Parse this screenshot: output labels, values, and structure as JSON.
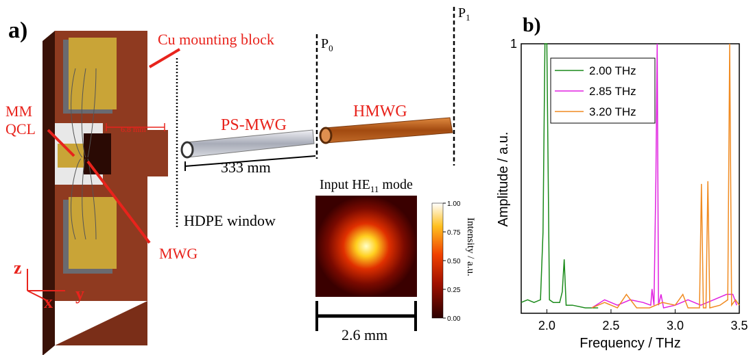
{
  "panel_a": {
    "label": "a)",
    "block_label": "Cu mounting block",
    "qcl_label": [
      "MM",
      "QCL"
    ],
    "gap_label": "6.8 mm",
    "ps_mwg": "PS-MWG",
    "hmwg": "HMWG",
    "length_label": "333 mm",
    "p0": {
      "base": "P",
      "sub": "0"
    },
    "p1": {
      "base": "P",
      "sub": "1"
    },
    "mode_label": {
      "pre": "Input HE",
      "sub": "11",
      "post": " mode"
    },
    "window_label": "HDPE window",
    "mwg_label": "MWG",
    "axes": {
      "z": "z",
      "x": "x",
      "y": "y"
    },
    "scale_label": "2.6 mm",
    "colorbar": {
      "title": "Intensity / a.u.",
      "lim": [
        0,
        1
      ],
      "ticks": [
        {
          "value": 0,
          "label": "0.00"
        },
        {
          "value": 0.25,
          "label": "0.25"
        },
        {
          "value": 0.5,
          "label": "0.50"
        },
        {
          "value": 0.75,
          "label": "0.75"
        },
        {
          "value": 1,
          "label": "1.00"
        }
      ]
    }
  },
  "chart_data": {
    "type": "line",
    "panel_label": "b)",
    "x_label": "Frequency / THz",
    "y_label": "Amplitude / a.u.",
    "xlim": [
      1.8,
      3.5
    ],
    "ylim": [
      0,
      1
    ],
    "xticks": [
      {
        "value": 2,
        "label": "2.0"
      },
      {
        "value": 2.5,
        "label": "2.5"
      },
      {
        "value": 3,
        "label": "3.0"
      },
      {
        "value": 3.5,
        "label": "3.5"
      }
    ],
    "yticks": [
      1
    ],
    "legend": "top-left",
    "series": [
      {
        "name": "2.00 THz",
        "color": "#1a8a1a",
        "x": [
          1.8,
          1.85,
          1.9,
          1.95,
          1.97,
          1.985,
          2.0,
          2.02,
          2.05,
          2.1,
          2.12,
          2.135,
          2.15,
          2.2,
          2.3,
          2.4
        ],
        "values": [
          0.04,
          0.05,
          0.04,
          0.05,
          0.3,
          1,
          1,
          0.05,
          0.04,
          0.04,
          0.08,
          0.2,
          0.03,
          0.03,
          0.02,
          0.02
        ]
      },
      {
        "name": "2.85 THz",
        "color": "#e020e0",
        "x": [
          2.35,
          2.45,
          2.55,
          2.65,
          2.75,
          2.81,
          2.82,
          2.835,
          2.85,
          2.86,
          2.87,
          2.89,
          2.91,
          3.0,
          3.1,
          3.2,
          3.3,
          3.4,
          3.45,
          3.48
        ],
        "values": [
          0.02,
          0.05,
          0.03,
          0.05,
          0.04,
          0.03,
          0.09,
          0.03,
          0.5,
          1,
          0.03,
          0.07,
          0.02,
          0.03,
          0.05,
          0.03,
          0.05,
          0.07,
          0.07,
          0.03
        ]
      },
      {
        "name": "3.20 THz",
        "color": "#f08a20",
        "x": [
          2.35,
          2.45,
          2.55,
          2.62,
          2.7,
          2.8,
          2.9,
          3.0,
          3.06,
          3.1,
          3.19,
          3.205,
          3.22,
          3.24,
          3.255,
          3.27,
          3.35,
          3.41,
          3.425,
          3.44,
          3.47,
          3.5
        ],
        "values": [
          0.02,
          0.04,
          0.02,
          0.07,
          0.02,
          0.02,
          0.04,
          0.03,
          0.07,
          0.02,
          0.02,
          0.48,
          0.02,
          0.02,
          0.49,
          0.02,
          0.03,
          0.05,
          1,
          0.03,
          0.05,
          0.03
        ]
      }
    ]
  }
}
